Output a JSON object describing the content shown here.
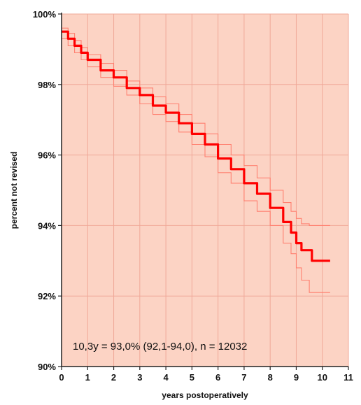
{
  "chart_data": {
    "type": "line",
    "title": "",
    "xlabel": "years postoperatively",
    "ylabel": "percent not revised",
    "xlim": [
      0,
      11
    ],
    "ylim": [
      90,
      100
    ],
    "x_ticks": [
      "0",
      "1",
      "2",
      "3",
      "4",
      "5",
      "6",
      "7",
      "8",
      "9",
      "10",
      "11"
    ],
    "y_ticks": [
      "90%",
      "92%",
      "94%",
      "96%",
      "98%",
      "100%"
    ],
    "grid": true,
    "legend": "none",
    "annotation": "10,3y = 93,0% (92,1-94,0), n = 12032",
    "colors": {
      "plot_background": "#fcd3c4",
      "grid": "#f0a898",
      "estimate_line": "#ff0000",
      "ci_lines": "#ff8070"
    },
    "series": [
      {
        "role": "estimate",
        "x": [
          0,
          0.25,
          0.5,
          0.75,
          1,
          1.5,
          2,
          2.5,
          3,
          3.5,
          4,
          4.5,
          5,
          5.5,
          6,
          6.5,
          7,
          7.5,
          8,
          8.5,
          8.8,
          9,
          9.2,
          9.5,
          9.6,
          10,
          10.3
        ],
        "y": [
          99.5,
          99.3,
          99.1,
          98.9,
          98.7,
          98.4,
          98.2,
          97.9,
          97.7,
          97.4,
          97.2,
          96.9,
          96.6,
          96.3,
          95.9,
          95.6,
          95.2,
          94.9,
          94.5,
          94.1,
          93.8,
          93.5,
          93.3,
          93.3,
          93.0,
          93.0,
          93.0
        ]
      },
      {
        "role": "upper-ci",
        "x": [
          0,
          0.25,
          0.5,
          0.75,
          1,
          1.5,
          2,
          2.5,
          3,
          3.5,
          4,
          4.5,
          5,
          5.5,
          6,
          6.5,
          7,
          7.5,
          8,
          8.5,
          8.8,
          9,
          9.2,
          9.5,
          10,
          10.3
        ],
        "y": [
          99.6,
          99.45,
          99.25,
          99.05,
          98.85,
          98.6,
          98.4,
          98.1,
          97.9,
          97.65,
          97.45,
          97.15,
          96.9,
          96.6,
          96.3,
          96.0,
          95.7,
          95.35,
          95.0,
          94.65,
          94.4,
          94.2,
          94.05,
          94.0,
          94.0,
          94.0
        ]
      },
      {
        "role": "lower-ci",
        "x": [
          0,
          0.25,
          0.5,
          0.75,
          1,
          1.5,
          2,
          2.5,
          3,
          3.5,
          4,
          4.5,
          5,
          5.5,
          6,
          6.5,
          7,
          7.5,
          8,
          8.5,
          8.8,
          9,
          9.2,
          9.5,
          10,
          10.3
        ],
        "y": [
          99.3,
          99.1,
          98.9,
          98.7,
          98.5,
          98.2,
          97.95,
          97.7,
          97.45,
          97.15,
          96.95,
          96.65,
          96.3,
          95.95,
          95.5,
          95.2,
          94.7,
          94.4,
          94.0,
          93.5,
          93.2,
          92.8,
          92.45,
          92.1,
          92.1,
          92.1
        ]
      }
    ]
  }
}
